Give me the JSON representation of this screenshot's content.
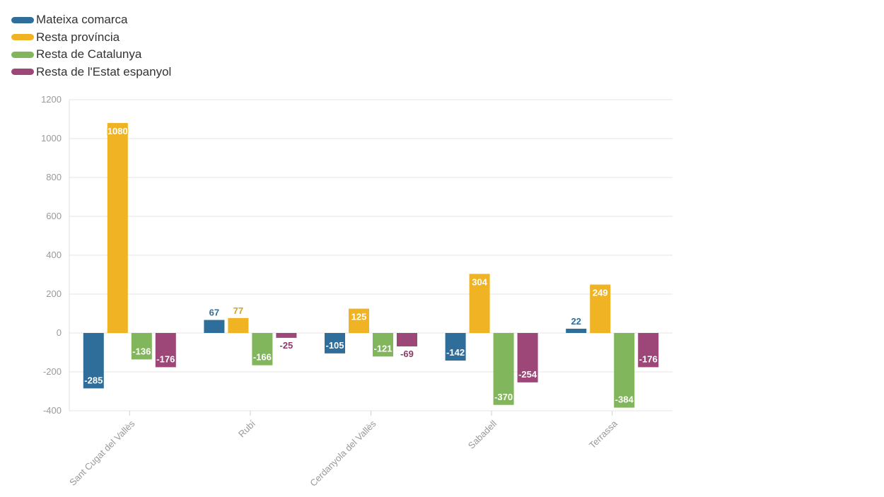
{
  "chart_data": {
    "type": "bar",
    "title": "",
    "xlabel": "",
    "ylabel": "",
    "categories": [
      "Sant Cugat del Vallès",
      "Rubí",
      "Cerdanyola del Vallès",
      "Sabadell",
      "Terrassa"
    ],
    "series": [
      {
        "name": "Mateixa comarca",
        "color": "#2f6e9b",
        "values": [
          -285,
          67,
          -105,
          -142,
          22
        ]
      },
      {
        "name": "Resta província",
        "color": "#f0b323",
        "values": [
          1080,
          77,
          125,
          304,
          249
        ]
      },
      {
        "name": "Resta de Catalunya",
        "color": "#82b65c",
        "values": [
          -136,
          -166,
          -121,
          -370,
          -384
        ]
      },
      {
        "name": "Resta de l'Estat espanyol",
        "color": "#9c4778",
        "values": [
          -176,
          -25,
          -69,
          -254,
          -176
        ]
      }
    ],
    "ylim": [
      -400,
      1200
    ],
    "yticks": [
      -400,
      -200,
      0,
      200,
      400,
      600,
      800,
      1000,
      1200
    ],
    "grid": true,
    "legend_position": "top-left"
  }
}
